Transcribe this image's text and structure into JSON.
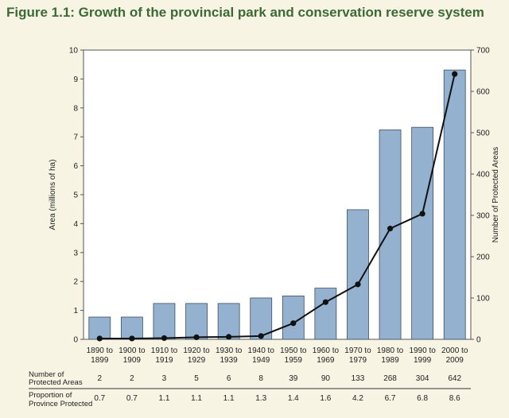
{
  "title": "Figure 1.1: Growth of the provincial park and conservation reserve system",
  "chart_data": {
    "type": "bar",
    "categories": [
      [
        "1890 to",
        "1899"
      ],
      [
        "1900 to",
        "1909"
      ],
      [
        "1910 to",
        "1919"
      ],
      [
        "1920 to",
        "1929"
      ],
      [
        "1930 to",
        "1939"
      ],
      [
        "1940 to",
        "1949"
      ],
      [
        "1950 to",
        "1959"
      ],
      [
        "1960 to",
        "1969"
      ],
      [
        "1970 to",
        "1979"
      ],
      [
        "1980 to",
        "1989"
      ],
      [
        "1990 to",
        "1999"
      ],
      [
        "2000 to",
        "2009"
      ]
    ],
    "area_values": [
      0.77,
      0.77,
      1.24,
      1.24,
      1.24,
      1.43,
      1.5,
      1.77,
      4.48,
      7.24,
      7.33,
      9.31
    ],
    "protected_areas": [
      2,
      2,
      3,
      5,
      6,
      8,
      39,
      90,
      133,
      268,
      304,
      642
    ],
    "ylabel_left": "Area (millions of ha)",
    "ylabel_right": "Number of Protected Areas",
    "ylim_left": [
      0,
      10
    ],
    "ylim_right": [
      0,
      700
    ],
    "yticks_left": [
      0,
      1,
      2,
      3,
      4,
      5,
      6,
      7,
      8,
      9,
      10
    ],
    "yticks_right": [
      0,
      100,
      200,
      300,
      400,
      500,
      600,
      700
    ],
    "colors": {
      "bar": "#94b2cf",
      "bar_stroke": "#3a4f66",
      "line": "#111111",
      "axis": "#555555"
    },
    "table": {
      "row1_label": [
        "Number of",
        "Protected Areas"
      ],
      "row1_values": [
        "2",
        "2",
        "3",
        "5",
        "6",
        "8",
        "39",
        "90",
        "133",
        "268",
        "304",
        "642"
      ],
      "row2_label": [
        "Proportion of",
        "Province Protected"
      ],
      "row2_values": [
        "0.7",
        "0.7",
        "1.1",
        "1.1",
        "1.1",
        "1.3",
        "1.4",
        "1.6",
        "4.2",
        "6.7",
        "6.8",
        "8.6"
      ]
    }
  }
}
